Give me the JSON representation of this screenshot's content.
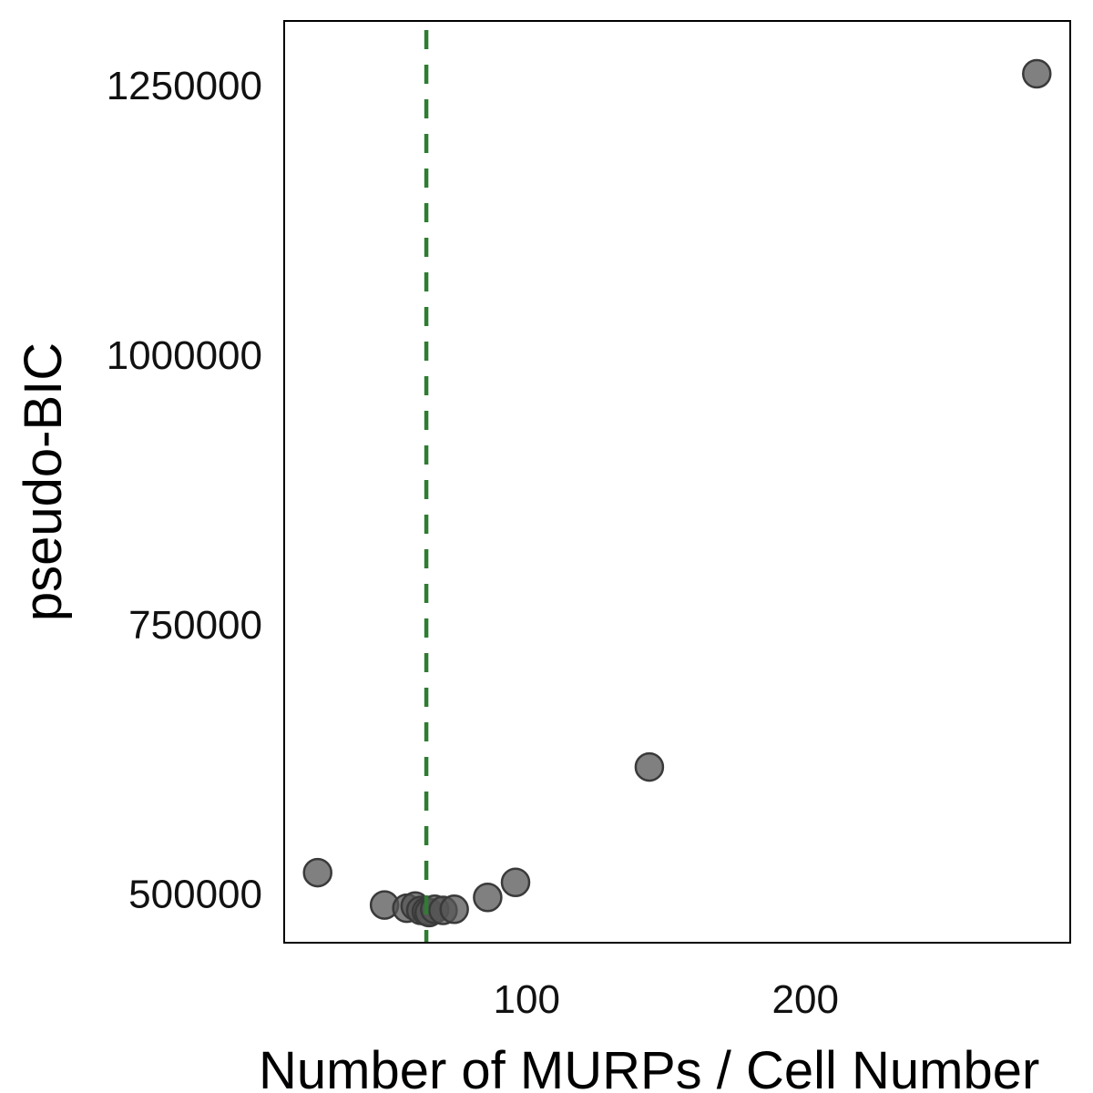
{
  "chart_data": {
    "type": "scatter",
    "title": "",
    "xlabel": "Number of MURPs / Cell Number",
    "ylabel": "pseudo-BIC",
    "xlim": [
      13,
      295
    ],
    "ylim": [
      455000,
      1310000
    ],
    "x_ticks": [
      {
        "value": 100,
        "label": "100"
      },
      {
        "value": 200,
        "label": "200"
      }
    ],
    "y_ticks": [
      {
        "value": 500000,
        "label": "500000"
      },
      {
        "value": 750000,
        "label": "750000"
      },
      {
        "value": 1000000,
        "label": "1000000"
      },
      {
        "value": 1250000,
        "label": "1250000"
      }
    ],
    "grid": false,
    "reference_line": {
      "axis": "x",
      "value": 64,
      "style": "dashed",
      "color": "#2e7d32"
    },
    "point_color": "#555555",
    "point_edge_color": "#3a3a3a",
    "points": [
      {
        "x": 25,
        "y": 520000
      },
      {
        "x": 49,
        "y": 490000
      },
      {
        "x": 57,
        "y": 487000
      },
      {
        "x": 60,
        "y": 489000
      },
      {
        "x": 62,
        "y": 485000
      },
      {
        "x": 64,
        "y": 484000
      },
      {
        "x": 65,
        "y": 483000
      },
      {
        "x": 67,
        "y": 486000
      },
      {
        "x": 70,
        "y": 485000
      },
      {
        "x": 74,
        "y": 486000
      },
      {
        "x": 86,
        "y": 497000
      },
      {
        "x": 96,
        "y": 511000
      },
      {
        "x": 144,
        "y": 618000
      },
      {
        "x": 283,
        "y": 1261000
      }
    ]
  }
}
